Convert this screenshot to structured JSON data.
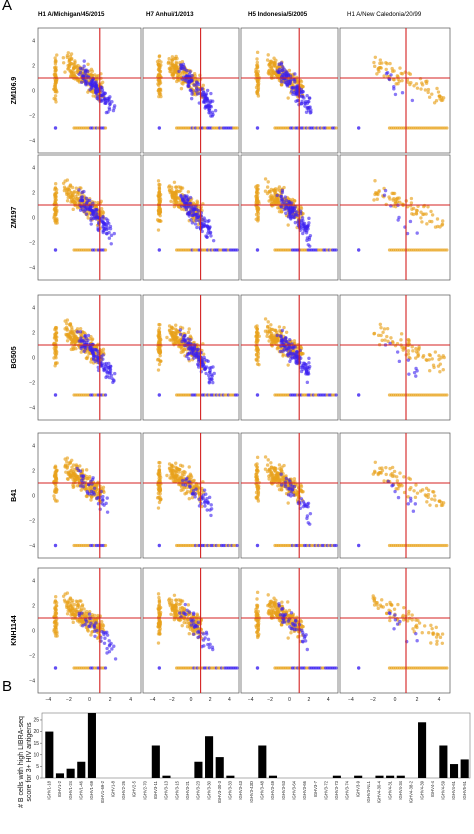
{
  "panels": {
    "a_label": "A",
    "b_label": "B"
  },
  "chart_data": [
    {
      "type": "scatter",
      "panel": "A",
      "columns": [
        "H1 A/Michigan/45/2015",
        "H7 Anhui/1/2013",
        "H5 Indonesia/5/2005",
        "H1 A/New Caledonia/20/99"
      ],
      "rows": [
        "ZM106.9",
        "ZM197",
        "BG505",
        "B41",
        "KNH1144"
      ],
      "xticks": [
        "−4",
        "−2",
        "0",
        "2",
        "4"
      ],
      "yticks": [
        "4",
        "2",
        "0",
        "−2",
        "−4"
      ],
      "xlim": [
        -5,
        5
      ],
      "ylim": [
        -5,
        5
      ],
      "threshold_x": 1,
      "threshold_y": 1,
      "colors": {
        "orange": "#e8a21b",
        "blue": "#3a1ff0",
        "threshold": "#d42020"
      },
      "grid": false
    },
    {
      "type": "bar",
      "panel": "B",
      "ylabel": "# B cells with high LIBRA-seq score for 3+ HIV antigens",
      "ylim": [
        0,
        28
      ],
      "yticks": [
        0,
        5,
        10,
        15,
        20,
        25
      ],
      "categories": [
        "IGHV1-18",
        "IGHV1-2",
        "IGHV1-24",
        "IGHV1-46",
        "IGHV1-69",
        "IGHV1-69-2",
        "IGHV1-8",
        "IGHV2-26",
        "IGHV2-5",
        "IGHV2-70",
        "IGHV3-11",
        "IGHV3-13",
        "IGHV3-15",
        "IGHV3-21",
        "IGHV3-23",
        "IGHV3-30",
        "IGHV3-30-3",
        "IGHV3-33",
        "IGHV3-43",
        "IGHV3-43D",
        "IGHV3-48",
        "IGHV3-49",
        "IGHV3-53",
        "IGHV3-64",
        "IGHV3-66",
        "IGHV3-7",
        "IGHV3-72",
        "IGHV3-73",
        "IGHV3-74",
        "IGHV3-9",
        "IGHV3-NL1",
        "IGHV4-30-4",
        "IGHV4-31",
        "IGHV4-34",
        "IGHV4-38-2",
        "IGHV4-39",
        "IGHV4-4",
        "IGHV4-59",
        "IGHV4-61",
        "IGHV5-51"
      ],
      "values": [
        20,
        2,
        4,
        7,
        28,
        0,
        0,
        0,
        0,
        0,
        14,
        1,
        0,
        0,
        7,
        18,
        9,
        1,
        0,
        0,
        14,
        1,
        0,
        0,
        0,
        0,
        0,
        1,
        0,
        1,
        0,
        1,
        1,
        1,
        0,
        24,
        0,
        14,
        6,
        8
      ],
      "bar_color": "#000000"
    }
  ]
}
